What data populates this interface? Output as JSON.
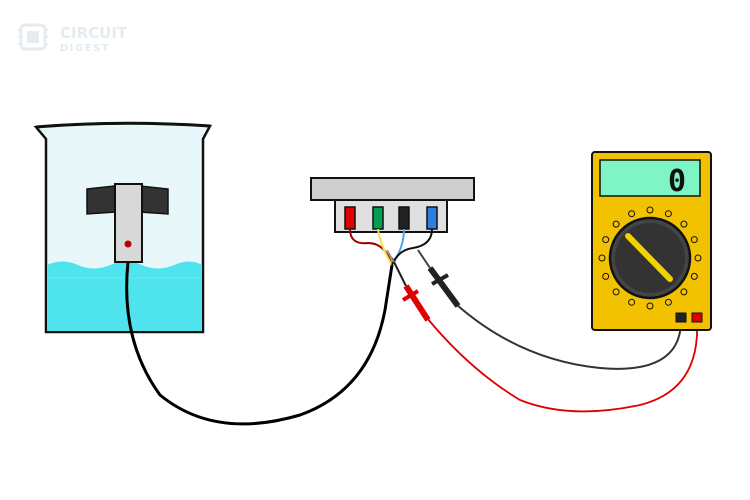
{
  "watermark": {
    "line1": "CIRCUIT",
    "line2": "DIGEST",
    "color": "#e4ecf0"
  },
  "multimeter": {
    "display_value": "0",
    "body_color": "#f2c200",
    "display_color": "#7ff5c5",
    "dial_color": "#333333",
    "pointer_color": "#f2d200",
    "com_jack_color": "#222222",
    "v_jack_color": "#e00000"
  },
  "sensor_board": {
    "pin_colors": [
      "#e00000",
      "#00a050",
      "#222222",
      "#2f7fe0"
    ],
    "board_color": "#cfcfcf"
  },
  "beaker": {
    "water_color": "#4fe3ee",
    "glass_color": "#e8f8fa",
    "probe_led_color": "#c00000"
  },
  "wires": {
    "probe_cable": "#000000",
    "red_lead": "#e00000",
    "black_lead": "#333333",
    "yellow": "#f2e24a",
    "blue": "#4aa8e8"
  }
}
